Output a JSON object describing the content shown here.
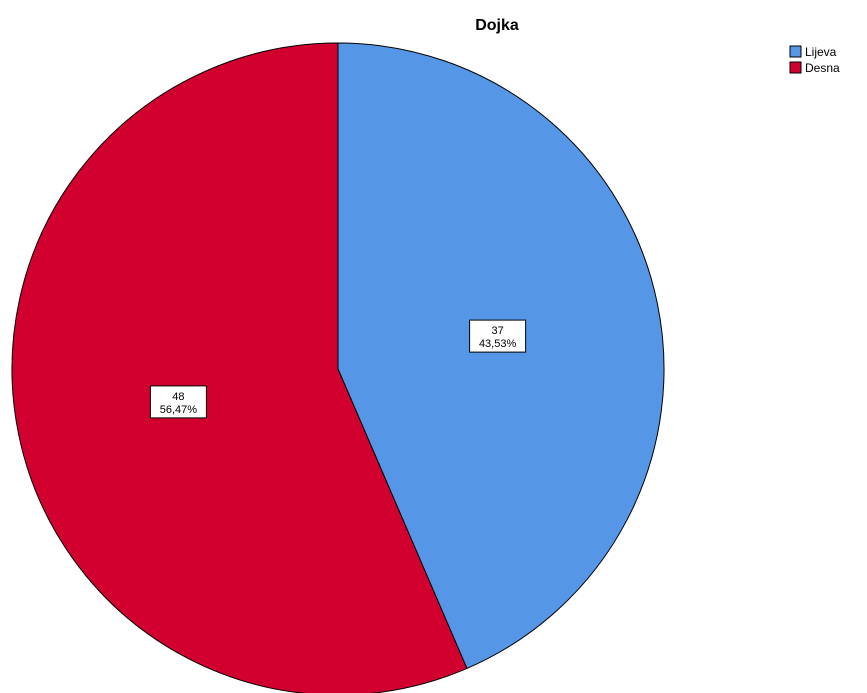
{
  "chart_data": {
    "type": "pie",
    "title": "Dojka",
    "categories": [
      "Lijeva",
      "Desna"
    ],
    "values": [
      37,
      48
    ],
    "percent_labels": [
      "43,53%",
      "56,47%"
    ],
    "colors": [
      "#5596E6",
      "#D1002F"
    ],
    "legend_position": "top-right",
    "start": "12 o'clock",
    "direction": "clockwise"
  }
}
